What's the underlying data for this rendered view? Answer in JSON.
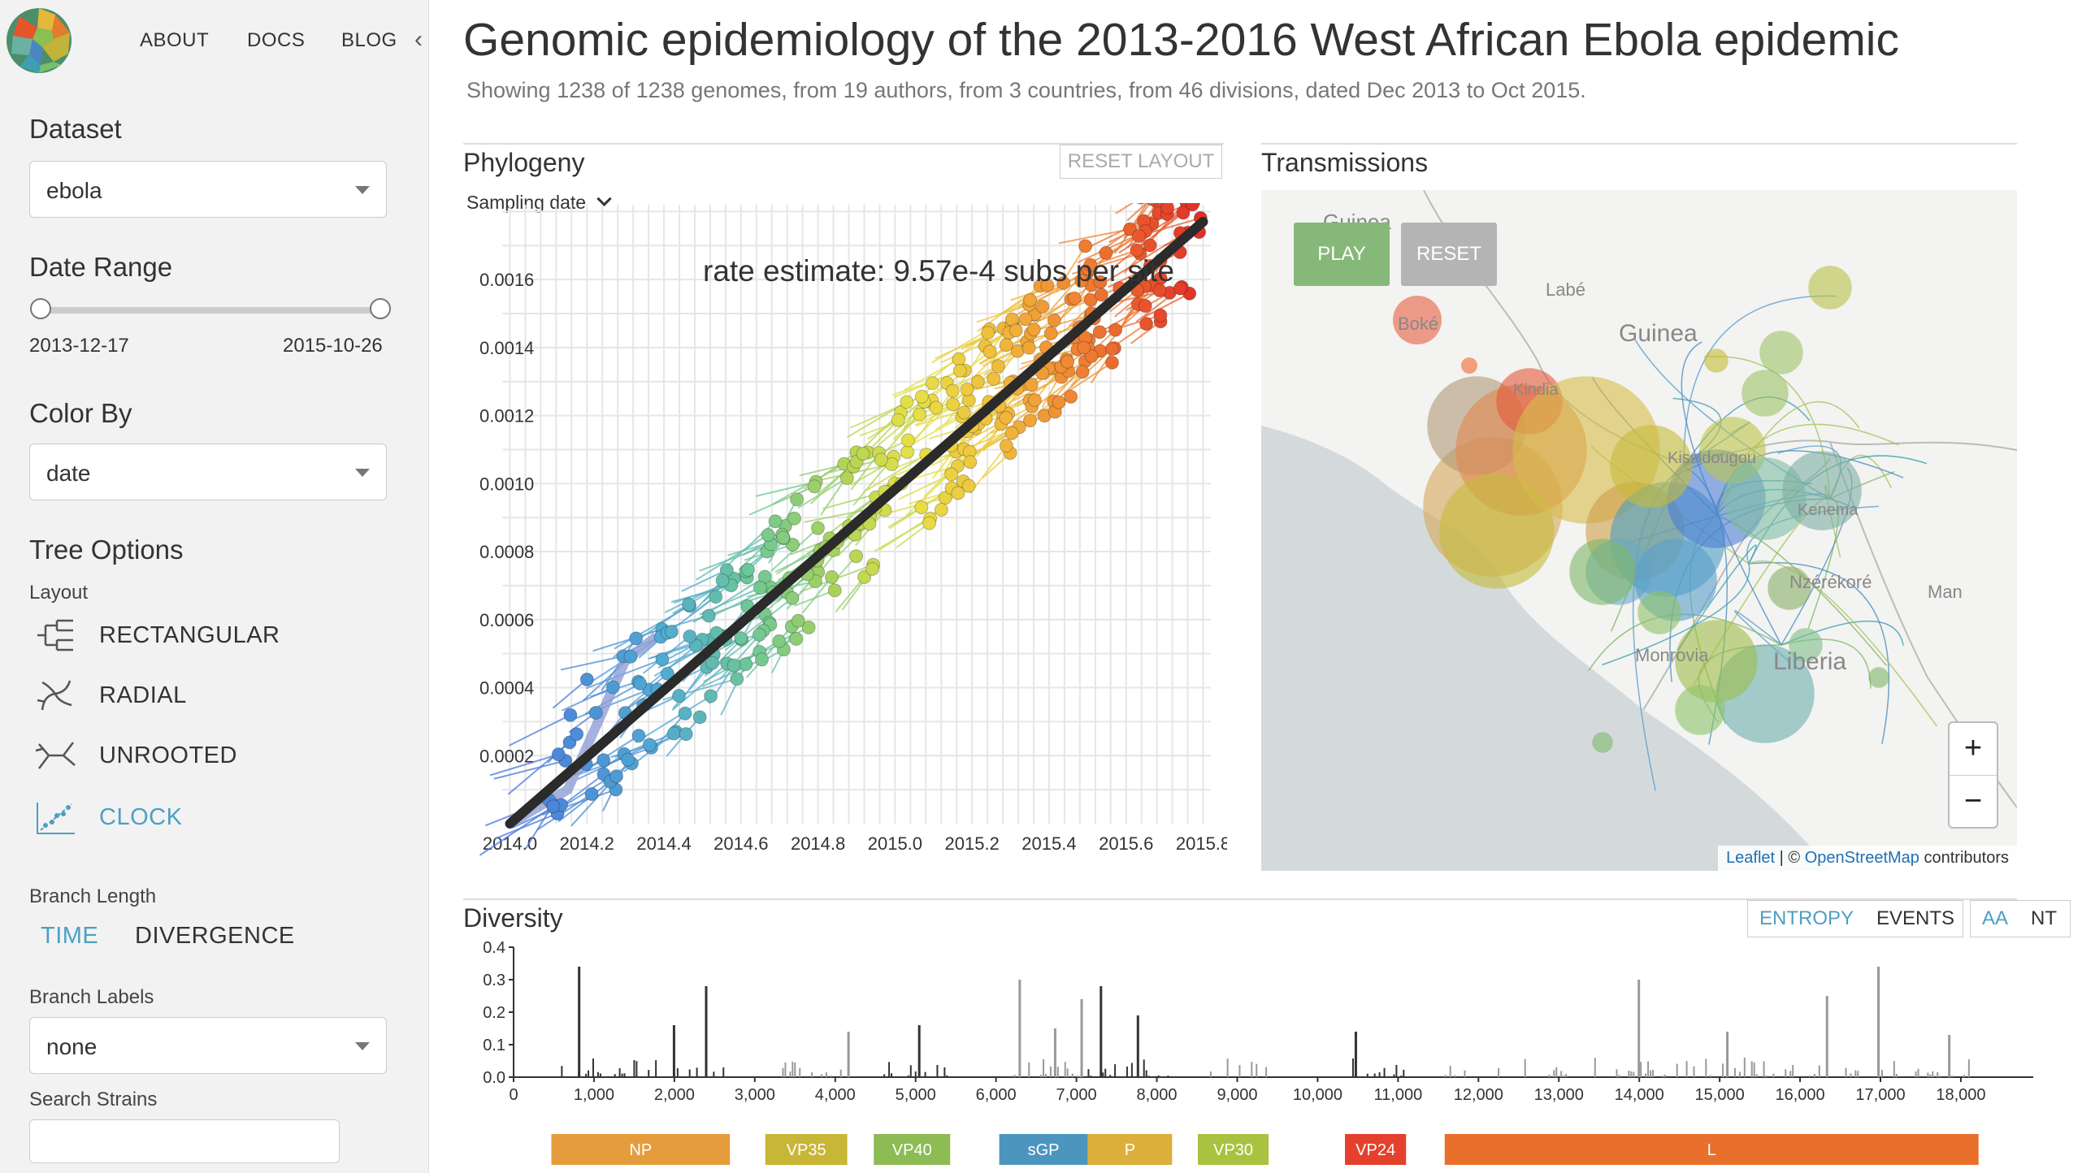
{
  "nav": {
    "about": "ABOUT",
    "docs": "DOCS",
    "blog": "BLOG"
  },
  "sidebar": {
    "dataset_title": "Dataset",
    "dataset_value": "ebola",
    "date_range_title": "Date Range",
    "date_start": "2013-12-17",
    "date_end": "2015-10-26",
    "color_by_title": "Color By",
    "color_by_value": "date",
    "tree_options_title": "Tree Options",
    "layout_label": "Layout",
    "layouts": [
      "RECTANGULAR",
      "RADIAL",
      "UNROOTED",
      "CLOCK"
    ],
    "branch_length_label": "Branch Length",
    "branch_length_time": "TIME",
    "branch_length_divergence": "DIVERGENCE",
    "branch_labels_label": "Branch Labels",
    "branch_labels_value": "none",
    "search_strains_label": "Search Strains",
    "search_strains_value": ""
  },
  "header": {
    "title": "Genomic epidemiology of the 2013-2016 West African Ebola epidemic",
    "subtitle": "Showing 1238 of 1238 genomes, from 19 authors, from 3 countries, from 46 divisions, dated Dec 2013 to Oct 2015."
  },
  "phylogeny": {
    "title": "Phylogeny",
    "reset_layout": "RESET LAYOUT",
    "axis_selector": "Sampling date",
    "rate_estimate": "rate estimate: 9.57e-4 subs per site",
    "chart_data": {
      "type": "scatter",
      "x_ticks": [
        "2014.0",
        "2014.2",
        "2014.4",
        "2014.6",
        "2014.8",
        "2015.0",
        "2015.2",
        "2015.4",
        "2015.6",
        "2015.8"
      ],
      "y_ticks": [
        "0.0002",
        "0.0004",
        "0.0006",
        "0.0008",
        "0.0010",
        "0.0012",
        "0.0014",
        "0.0016"
      ],
      "xlim": [
        2013.98,
        2015.82
      ],
      "ylim": [
        0,
        0.00182
      ],
      "regression": {
        "x": [
          2014.0,
          2015.8
        ],
        "y": [
          0.0,
          0.00177
        ]
      }
    }
  },
  "transmissions": {
    "title": "Transmissions",
    "play": "PLAY",
    "reset": "RESET",
    "zoom_in": "+",
    "zoom_out": "−",
    "attribution_leaflet": "Leaflet",
    "attribution_sep": " | © ",
    "attribution_osm": "OpenStreetMap",
    "attribution_rest": " contributors",
    "map_labels": [
      "Guinea",
      "Labé",
      "Guinea",
      "Boké",
      "Kindia",
      "Kissidougou",
      "Kenema",
      "Nzérékoré",
      "Man",
      "Monrovia",
      "Liberia"
    ]
  },
  "diversity": {
    "title": "Diversity",
    "entropy": "ENTROPY",
    "events": "EVENTS",
    "aa": "AA",
    "nt": "NT",
    "chart_data": {
      "type": "bar",
      "y_ticks": [
        "0.0",
        "0.1",
        "0.2",
        "0.3",
        "0.4"
      ],
      "x_ticks": [
        "0",
        "1,000",
        "2,000",
        "3,000",
        "4,000",
        "5,000",
        "6,000",
        "7,000",
        "8,000",
        "9,000",
        "10,000",
        "11,000",
        "12,000",
        "13,000",
        "14,000",
        "15,000",
        "16,000",
        "17,000",
        "18,000"
      ],
      "xlim": [
        0,
        18900
      ],
      "ylim": [
        0,
        0.4
      ],
      "genes": [
        {
          "name": "NP",
          "start": 470,
          "end": 2690,
          "color": "#e59c3d"
        },
        {
          "name": "VP35",
          "start": 3130,
          "end": 4150,
          "color": "#c8b637"
        },
        {
          "name": "VP40",
          "start": 4480,
          "end": 5430,
          "color": "#8dbb54"
        },
        {
          "name": "sGP",
          "start": 6040,
          "end": 7140,
          "color": "#4c95bf"
        },
        {
          "name": "P",
          "start": 7140,
          "end": 8190,
          "color": "#dcae3a"
        },
        {
          "name": "VP30",
          "start": 8510,
          "end": 9390,
          "color": "#a9c240"
        },
        {
          "name": "VP24",
          "start": 10340,
          "end": 11100,
          "color": "#e5402c"
        },
        {
          "name": "L",
          "start": 11580,
          "end": 18220,
          "color": "#e8702c"
        }
      ],
      "major_peaks": [
        {
          "pos": 800,
          "value": 0.34
        },
        {
          "pos": 1980,
          "value": 0.16
        },
        {
          "pos": 2380,
          "value": 0.28
        },
        {
          "pos": 4150,
          "value": 0.14
        },
        {
          "pos": 5030,
          "value": 0.16
        },
        {
          "pos": 6280,
          "value": 0.3
        },
        {
          "pos": 6720,
          "value": 0.15
        },
        {
          "pos": 7050,
          "value": 0.24
        },
        {
          "pos": 7290,
          "value": 0.28
        },
        {
          "pos": 7750,
          "value": 0.19
        },
        {
          "pos": 10460,
          "value": 0.14
        },
        {
          "pos": 13980,
          "value": 0.3
        },
        {
          "pos": 15080,
          "value": 0.14
        },
        {
          "pos": 16320,
          "value": 0.25
        },
        {
          "pos": 16960,
          "value": 0.34
        },
        {
          "pos": 17840,
          "value": 0.13
        }
      ]
    }
  }
}
